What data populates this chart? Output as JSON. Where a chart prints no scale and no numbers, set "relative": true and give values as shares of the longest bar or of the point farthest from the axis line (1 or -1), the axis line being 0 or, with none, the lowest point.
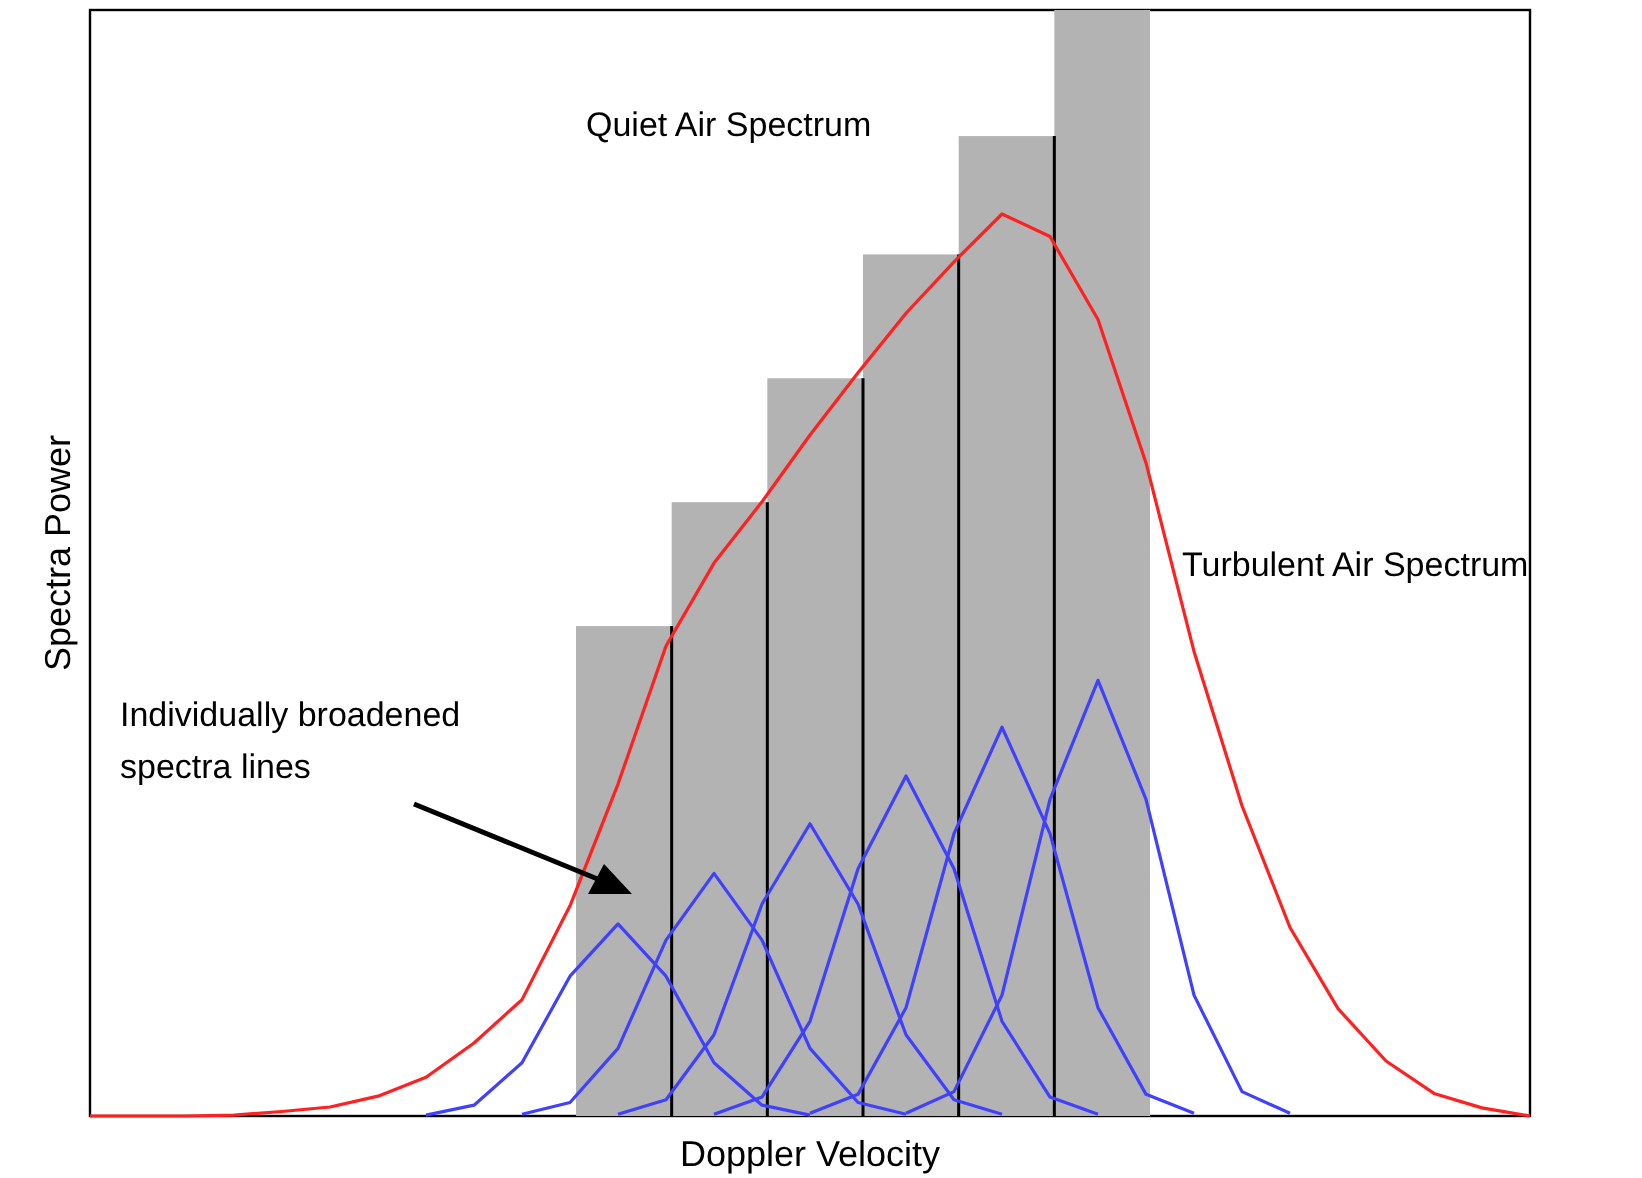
{
  "chart_data": [
    {
      "type": "bar",
      "relative": true,
      "categories": [
        null,
        null,
        null,
        null,
        null,
        null
      ],
      "annotations": [
        "Quiet Air Spectrum"
      ],
      "series": [
        {
          "color": "#b3b3b3",
          "values": [
            0.443,
            0.555,
            0.667,
            0.779,
            0.886,
            1.0
          ]
        }
      ]
    },
    {
      "type": "line",
      "relative": true,
      "xlabel": "Doppler Velocity",
      "ylabel": "Spectra Power",
      "annotations": [
        "Turbulent Air Spectrum",
        "Individually broadened\nspectra lines"
      ],
      "categories": [
        null,
        null,
        null,
        null,
        null,
        null,
        null,
        null,
        null,
        null,
        null,
        null,
        null,
        null,
        null,
        null,
        null,
        null,
        null,
        null,
        null,
        null,
        null,
        null,
        null,
        null,
        null,
        null,
        null,
        null,
        null
      ],
      "series": [
        {
          "color": "#ff2020",
          "values": [
            0,
            0,
            0,
            0.001,
            0.005,
            0.01,
            0.022,
            0.043,
            0.081,
            0.129,
            0.233,
            0.368,
            0.521,
            0.613,
            0.681,
            0.755,
            0.824,
            0.89,
            0.947,
            1,
            0.975,
            0.883,
            0.724,
            0.515,
            0.344,
            0.209,
            0.119,
            0.061,
            0.025,
            0.009,
            0
          ]
        },
        {
          "color": "#4040ff",
          "values": [
            null,
            null,
            null,
            null,
            null,
            null,
            null,
            0.001,
            0.012,
            0.059,
            0.155,
            0.213,
            0.155,
            0.059,
            0.012,
            0.001,
            null,
            null,
            null,
            null,
            null,
            null,
            null,
            null,
            null,
            null,
            null,
            null,
            null,
            null,
            null
          ]
        },
        {
          "color": "#4040ff",
          "values": [
            null,
            null,
            null,
            null,
            null,
            null,
            null,
            null,
            null,
            0.002,
            0.015,
            0.075,
            0.195,
            0.269,
            0.195,
            0.075,
            0.015,
            0.002,
            null,
            null,
            null,
            null,
            null,
            null,
            null,
            null,
            null,
            null,
            null,
            null,
            null
          ]
        },
        {
          "color": "#4040ff",
          "values": [
            null,
            null,
            null,
            null,
            null,
            null,
            null,
            null,
            null,
            null,
            null,
            0.002,
            0.018,
            0.09,
            0.235,
            0.324,
            0.235,
            0.09,
            0.018,
            0.002,
            null,
            null,
            null,
            null,
            null,
            null,
            null,
            null,
            null,
            null,
            null
          ]
        },
        {
          "color": "#4040ff",
          "values": [
            null,
            null,
            null,
            null,
            null,
            null,
            null,
            null,
            null,
            null,
            null,
            null,
            null,
            0.002,
            0.021,
            0.105,
            0.274,
            0.377,
            0.274,
            0.105,
            0.021,
            0.002,
            null,
            null,
            null,
            null,
            null,
            null,
            null,
            null,
            null
          ]
        },
        {
          "color": "#4040ff",
          "values": [
            null,
            null,
            null,
            null,
            null,
            null,
            null,
            null,
            null,
            null,
            null,
            null,
            null,
            null,
            null,
            0.003,
            0.024,
            0.12,
            0.313,
            0.431,
            0.313,
            0.12,
            0.024,
            0.003,
            null,
            null,
            null,
            null,
            null,
            null,
            null
          ]
        },
        {
          "color": "#4040ff",
          "values": [
            null,
            null,
            null,
            null,
            null,
            null,
            null,
            null,
            null,
            null,
            null,
            null,
            null,
            null,
            null,
            null,
            null,
            0.003,
            0.027,
            0.134,
            0.351,
            0.483,
            0.351,
            0.134,
            0.027,
            0.003,
            null,
            null,
            null,
            null,
            null
          ]
        }
      ]
    }
  ]
}
